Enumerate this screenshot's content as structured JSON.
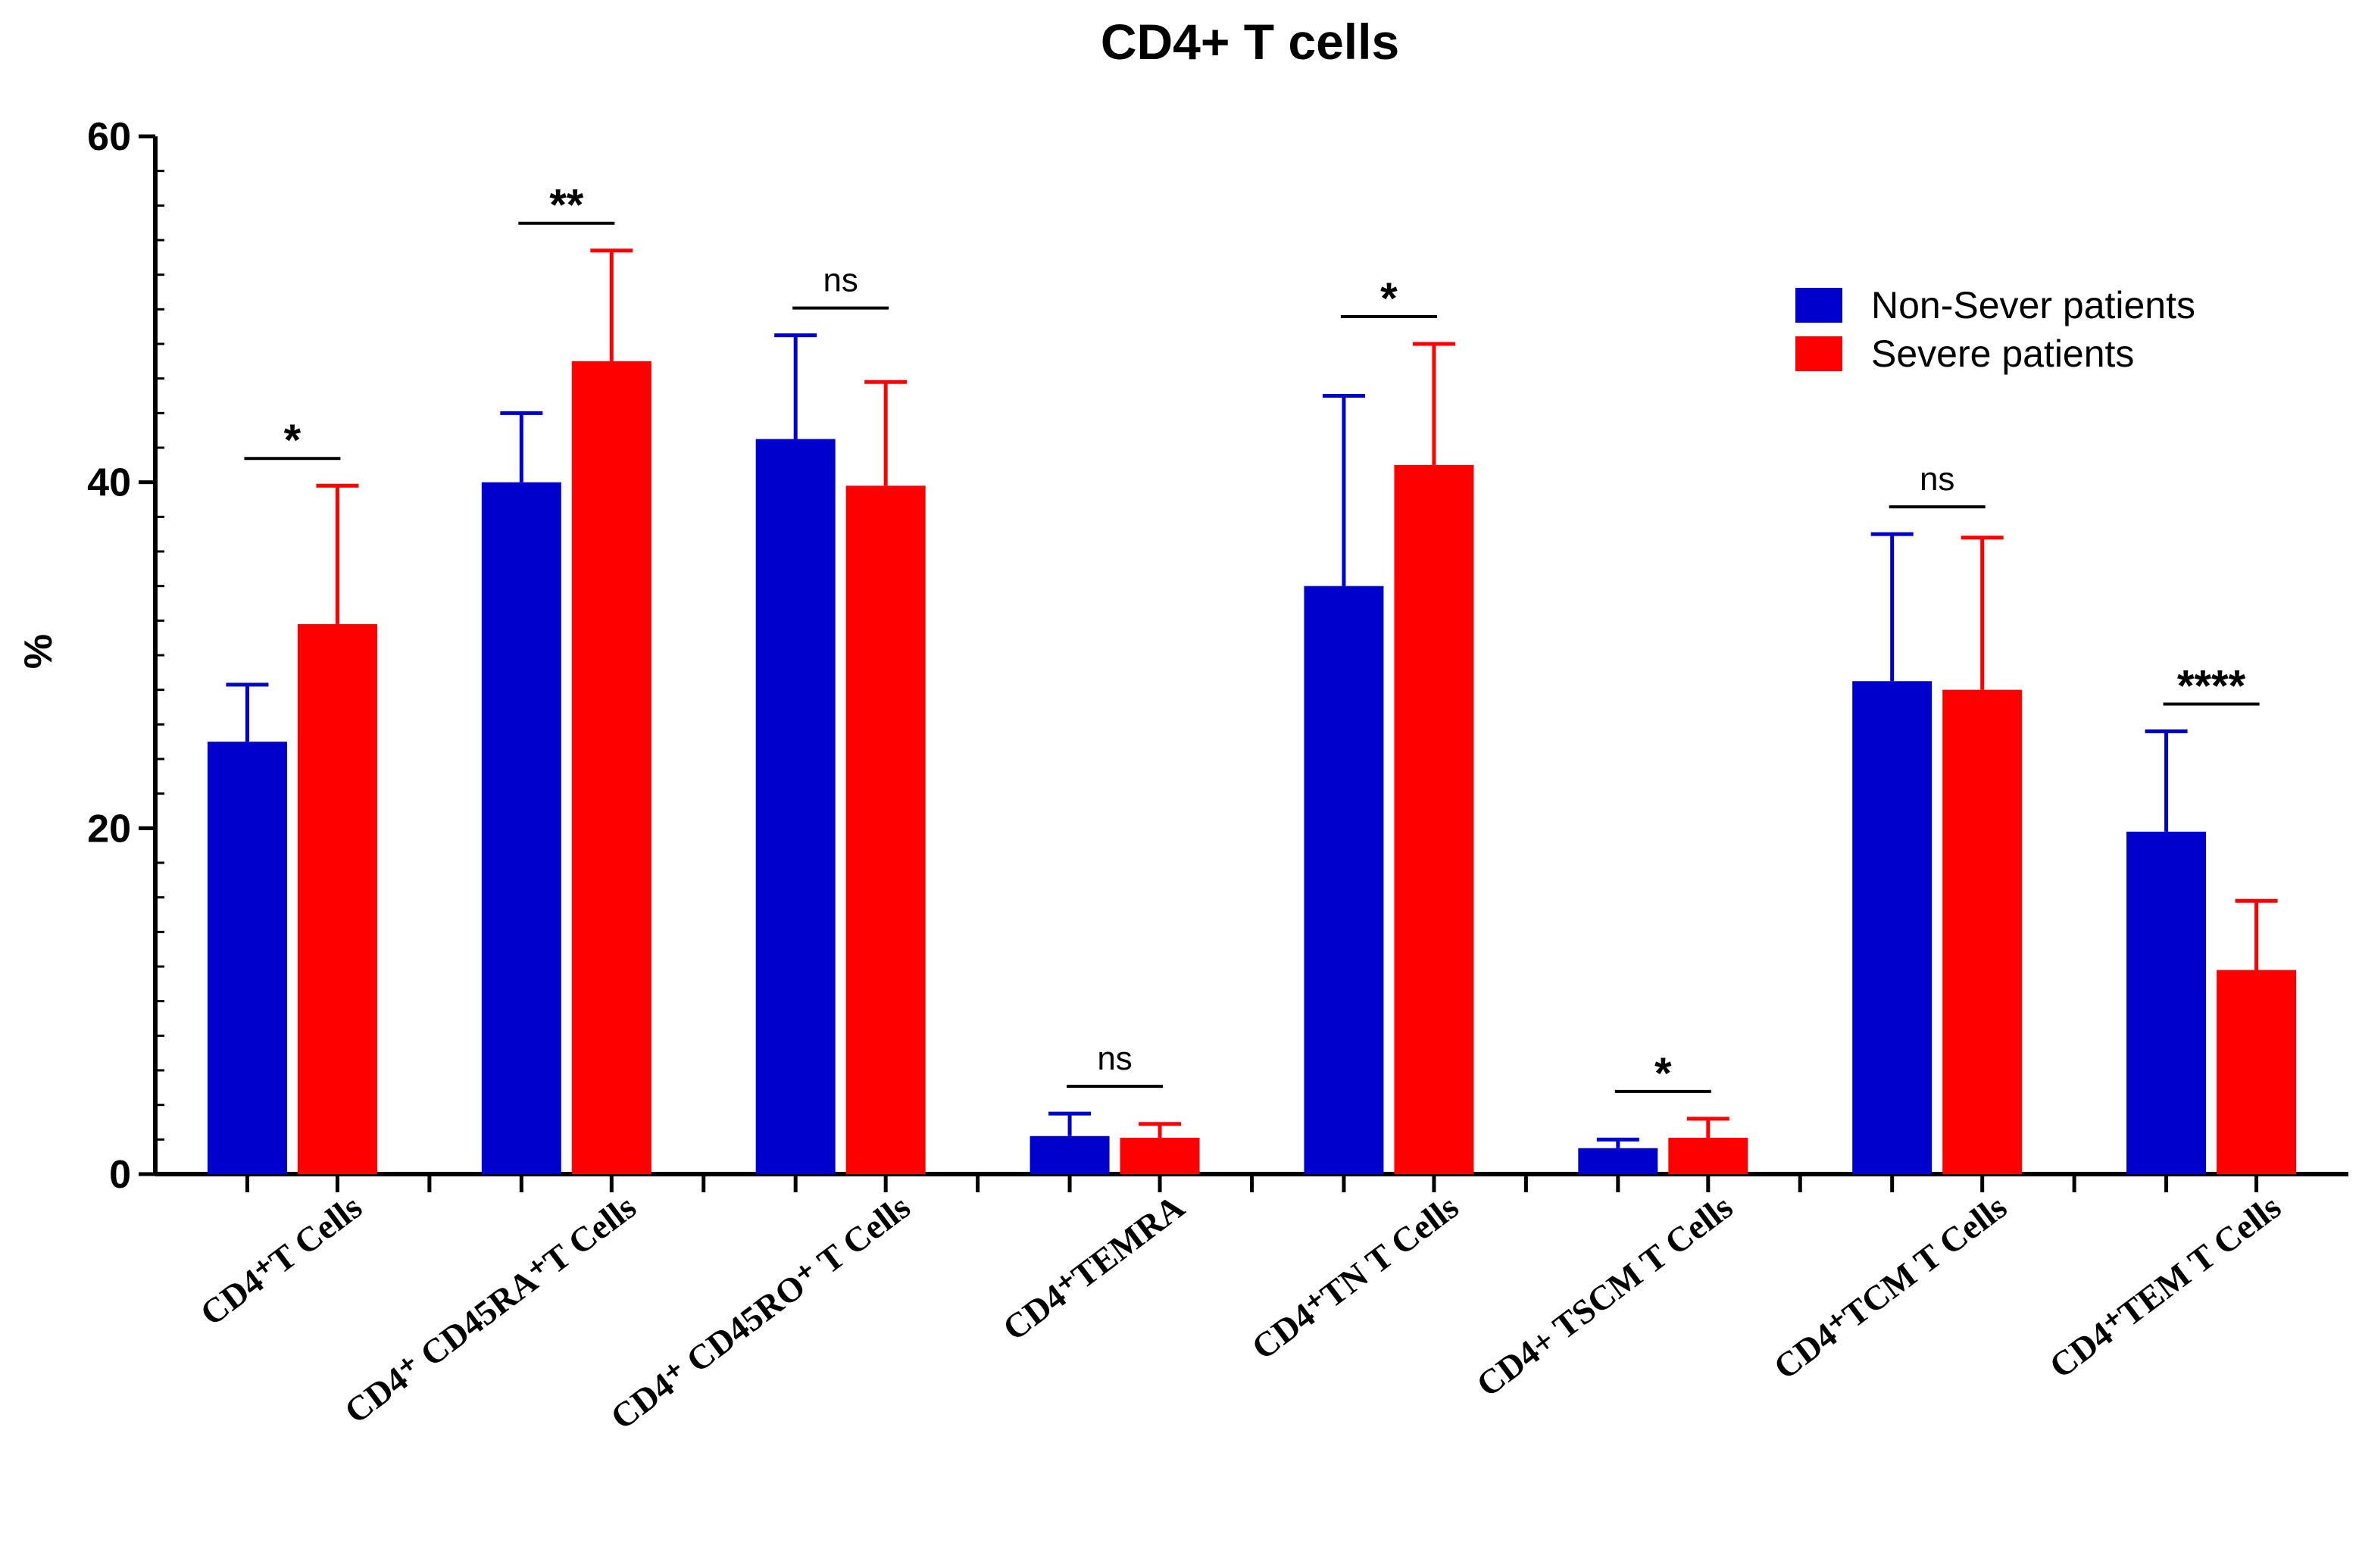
{
  "chart_data": {
    "type": "bar",
    "title": "CD4+ T cells",
    "ylabel": "%",
    "xlabel": "",
    "ylim": [
      0,
      60
    ],
    "yticks": [
      "0",
      "20",
      "40",
      "60"
    ],
    "categories": [
      "CD4⁺T Cells",
      "CD4⁺ CD45RA⁺T Cells",
      "CD4⁺ CD45RO⁺ T Cells",
      "CD4⁺TEMRA",
      "CD4⁺TN T Cells",
      "CD4+ TSCM T Cells",
      "CD4⁺TCM T Cells",
      "CD4⁺TEM T Cells"
    ],
    "series": [
      {
        "name": "Non-Sever patients",
        "color": "#0000cc",
        "values": [
          25,
          40,
          42.5,
          2.2,
          34,
          1.5,
          28.5,
          19.8
        ],
        "errors": [
          3.3,
          4,
          6,
          1.3,
          11,
          0.5,
          8.5,
          5.8
        ]
      },
      {
        "name": "Severe patients",
        "color": "#ff0000",
        "values": [
          31.8,
          47,
          39.8,
          2.1,
          41,
          2.1,
          28,
          11.8
        ],
        "errors": [
          8,
          6.4,
          6,
          0.8,
          7,
          1.1,
          8.8,
          4
        ]
      }
    ],
    "significance": [
      "*",
      "**",
      "ns",
      "ns",
      "*",
      "*",
      "ns",
      "****"
    ],
    "legend_position": "top-right"
  }
}
